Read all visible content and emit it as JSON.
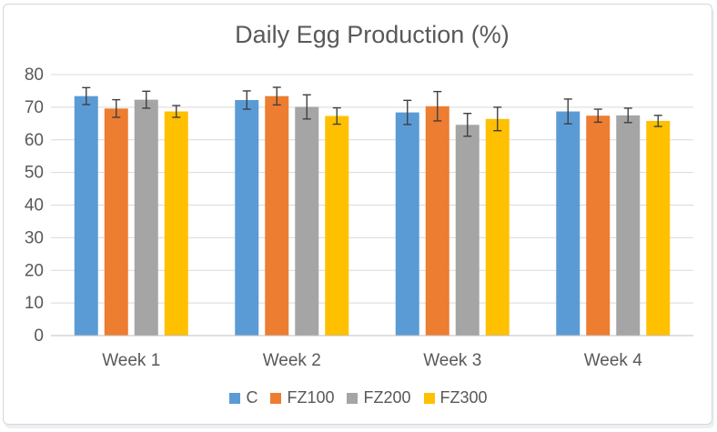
{
  "chart_data": {
    "type": "bar",
    "title": "Daily Egg Production (%)",
    "categories": [
      "Week 1",
      "Week 2",
      "Week 3",
      "Week 4"
    ],
    "series": [
      {
        "name": "C",
        "color": "#5B9BD5",
        "values": [
          73.4,
          72.2,
          68.4,
          68.7
        ],
        "errors": [
          2.6,
          2.8,
          3.7,
          3.8
        ]
      },
      {
        "name": "FZ100",
        "color": "#ED7D31",
        "values": [
          69.6,
          73.4,
          70.3,
          67.4
        ],
        "errors": [
          2.7,
          2.7,
          4.5,
          2.0
        ]
      },
      {
        "name": "FZ200",
        "color": "#A5A5A5",
        "values": [
          72.3,
          70.1,
          64.6,
          67.5
        ],
        "errors": [
          2.6,
          3.7,
          3.5,
          2.2
        ]
      },
      {
        "name": "FZ300",
        "color": "#FFC000",
        "values": [
          68.7,
          67.3,
          66.4,
          65.8
        ],
        "errors": [
          1.8,
          2.5,
          3.6,
          1.7
        ]
      }
    ],
    "ylim": [
      0,
      80
    ],
    "ytick_step": 10,
    "yticks": [
      0,
      10,
      20,
      30,
      40,
      50,
      60,
      70,
      80
    ],
    "grid": true,
    "legend_position": "bottom",
    "error_bars": true
  },
  "colors": {
    "text": "#595959",
    "gridline": "#D9D9D9",
    "axis_line": "#BFBFBF",
    "error_bar": "#404040",
    "frame_border": "#D4D7DA",
    "background": "#FFFFFF"
  }
}
